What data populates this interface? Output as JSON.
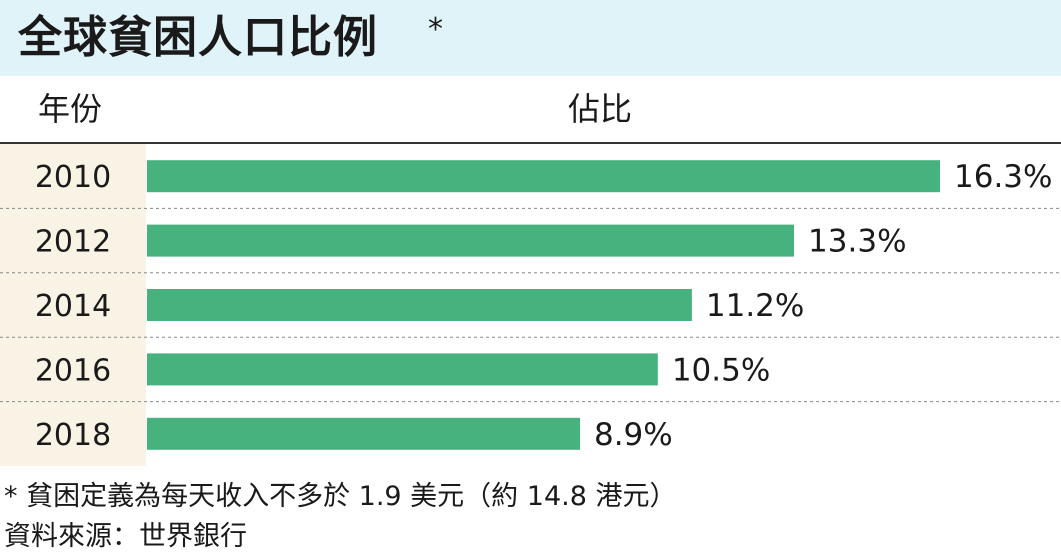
{
  "title": "全球貧困人口比例",
  "title_mark": "*",
  "header": {
    "year": "年份",
    "share": "佔比"
  },
  "footnote": "* 貧困定義為每天收入不多於 1.9 美元（約 14.8 港元）",
  "source": "資料來源：世界銀行",
  "colors": {
    "bar": "#47b27e",
    "title_bg": "#dff3f8",
    "year_bg": "#f8f3e4"
  },
  "chart_data": {
    "type": "bar",
    "orientation": "horizontal",
    "categories": [
      "2010",
      "2012",
      "2014",
      "2016",
      "2018"
    ],
    "values": [
      16.3,
      13.3,
      11.2,
      10.5,
      8.9
    ],
    "value_labels": [
      "16.3%",
      "13.3%",
      "11.2%",
      "10.5%",
      "8.9%"
    ],
    "unit": "%",
    "xlim": [
      0,
      16.3
    ],
    "grid": false,
    "legend": "none"
  }
}
